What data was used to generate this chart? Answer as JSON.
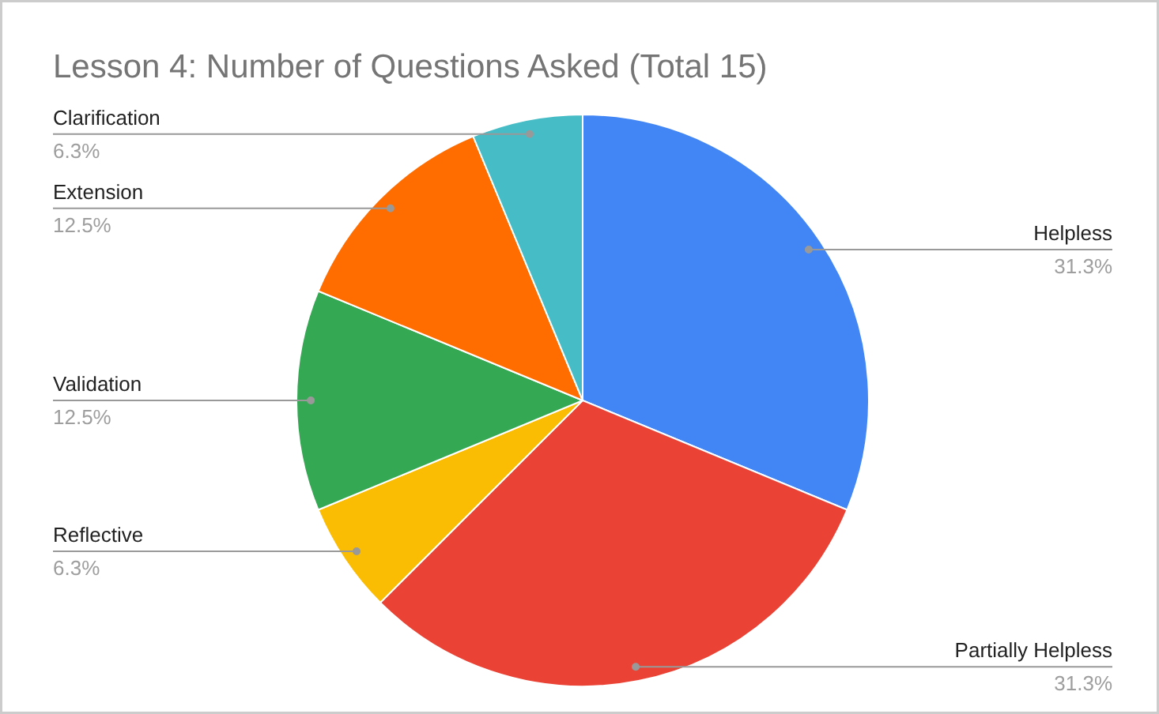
{
  "chart_data": {
    "type": "pie",
    "title": "Lesson 4: Number of Questions Asked (Total 15)",
    "categories": [
      "Helpless",
      "Partially Helpless",
      "Reflective",
      "Validation",
      "Extension",
      "Clarification"
    ],
    "values": [
      31.25,
      31.25,
      6.25,
      12.5,
      12.5,
      6.25
    ],
    "value_labels": [
      "31.3%",
      "31.3%",
      "6.3%",
      "12.5%",
      "12.5%",
      "6.3%"
    ],
    "colors": [
      "#4285f4",
      "#ea4335",
      "#fbbc04",
      "#34a853",
      "#ff6d01",
      "#46bdc6"
    ]
  }
}
